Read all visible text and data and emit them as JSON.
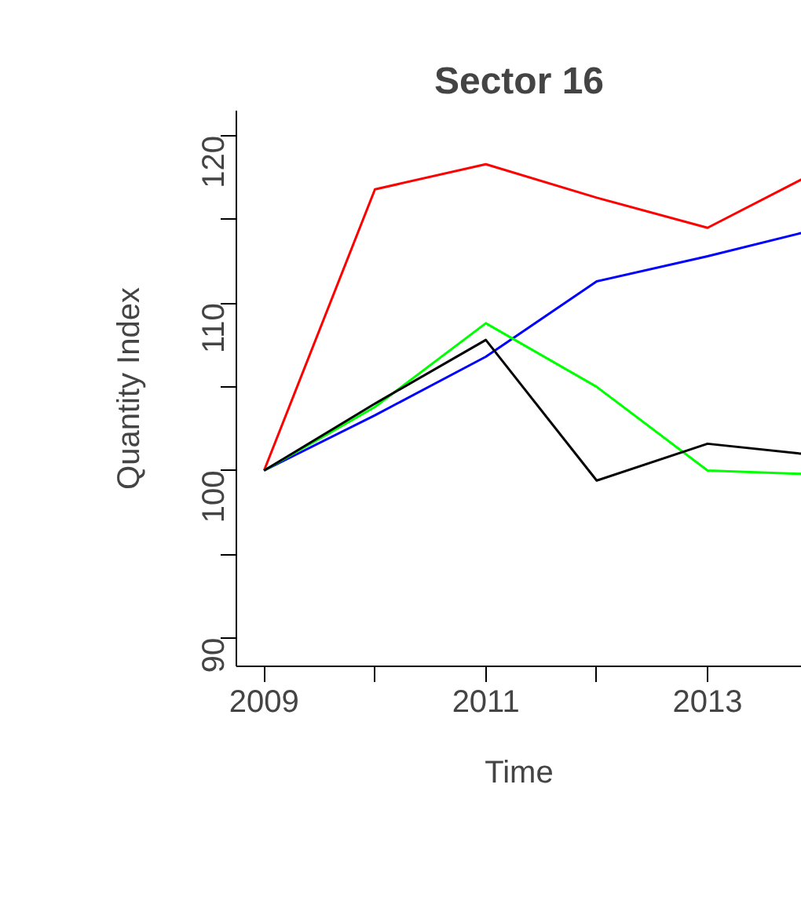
{
  "chart_data": {
    "type": "line",
    "title": "Sector 16",
    "xlabel": "Time",
    "ylabel": "Quantity Index",
    "x": [
      2009,
      2010,
      2011,
      2012,
      2013,
      2013.85
    ],
    "series": [
      {
        "color": "#ff0000",
        "values": [
          100,
          116.8,
          118.3,
          116.3,
          114.5,
          117.4
        ]
      },
      {
        "color": "#0000ff",
        "values": [
          100,
          103.3,
          106.8,
          111.3,
          112.8,
          114.2
        ]
      },
      {
        "color": "#00ff00",
        "values": [
          100,
          103.8,
          108.8,
          105.0,
          100.0,
          99.8
        ]
      },
      {
        "color": "#000000",
        "values": [
          100,
          104.0,
          107.8,
          99.4,
          101.6,
          101.0
        ]
      }
    ],
    "xlim": [
      2008.75,
      2013.85
    ],
    "ylim": [
      88.3,
      121.5
    ],
    "xticks": [
      2009,
      {
        "value": 2010,
        "label": null
      },
      2011,
      {
        "value": 2012,
        "label": null
      },
      2013
    ],
    "yticks": [
      90,
      {
        "value": 95,
        "label": null
      },
      100,
      {
        "value": 105,
        "label": null
      },
      110,
      {
        "value": 115,
        "label": null
      },
      120
    ],
    "grid": false,
    "marker": "none",
    "line_style": "solid"
  }
}
